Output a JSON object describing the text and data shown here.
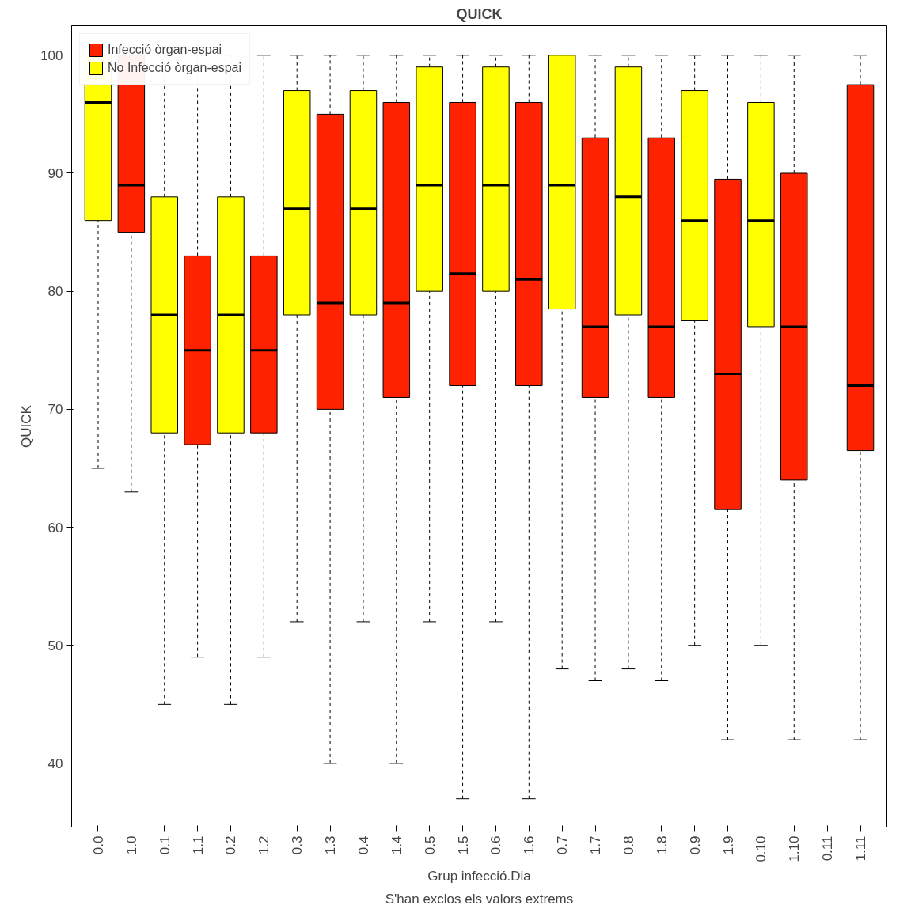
{
  "chart_data": {
    "type": "box",
    "title": "QUICK",
    "xlabel": "Grup infecció.Dia",
    "ylabel": "QUICK",
    "annotations": [
      "S'han exclos els valors extrems"
    ],
    "categories": [
      "0.0",
      "1.0",
      "0.1",
      "1.1",
      "0.2",
      "1.2",
      "0.3",
      "1.3",
      "0.4",
      "1.4",
      "0.5",
      "1.5",
      "0.6",
      "1.6",
      "0.7",
      "1.7",
      "0.8",
      "1.8",
      "0.9",
      "1.9",
      "0.10",
      "1.10",
      "0.11",
      "1.11"
    ],
    "ylim": [
      34.6,
      102.5
    ],
    "yticks": [
      40,
      50,
      60,
      70,
      80,
      90,
      100
    ],
    "grid": false,
    "legend": "top left",
    "series": [
      {
        "name": "Infecció òrgan-espai",
        "color": "#ff2200",
        "boxes": [
          null,
          {
            "low": 63,
            "q1": 85,
            "median": 89,
            "q3": 100,
            "high": 100
          },
          null,
          {
            "low": 49,
            "q1": 67,
            "median": 75,
            "q3": 83,
            "high": 100
          },
          null,
          {
            "low": 49,
            "q1": 68,
            "median": 75,
            "q3": 83,
            "high": 100
          },
          null,
          {
            "low": 40,
            "q1": 70,
            "median": 79,
            "q3": 95,
            "high": 100
          },
          null,
          {
            "low": 40,
            "q1": 71,
            "median": 79,
            "q3": 96,
            "high": 100
          },
          null,
          {
            "low": 37,
            "q1": 72,
            "median": 81.5,
            "q3": 96,
            "high": 100
          },
          null,
          {
            "low": 37,
            "q1": 72,
            "median": 81,
            "q3": 96,
            "high": 100
          },
          null,
          {
            "low": 47,
            "q1": 71,
            "median": 77,
            "q3": 93,
            "high": 100
          },
          null,
          {
            "low": 47,
            "q1": 71,
            "median": 77,
            "q3": 93,
            "high": 100
          },
          null,
          {
            "low": 42,
            "q1": 61.5,
            "median": 73,
            "q3": 89.5,
            "high": 100
          },
          null,
          {
            "low": 42,
            "q1": 64,
            "median": 77,
            "q3": 90,
            "high": 100
          },
          null,
          {
            "low": 42,
            "q1": 66.5,
            "median": 72,
            "q3": 97.5,
            "high": 100
          }
        ]
      },
      {
        "name": "No Infecció òrgan-espai",
        "color": "#ffff00",
        "boxes": [
          {
            "low": 65,
            "q1": 86,
            "median": 96,
            "q3": 100,
            "high": 100
          },
          null,
          {
            "low": 45,
            "q1": 68,
            "median": 78,
            "q3": 88,
            "high": 100
          },
          null,
          {
            "low": 45,
            "q1": 68,
            "median": 78,
            "q3": 88,
            "high": 100
          },
          null,
          {
            "low": 52,
            "q1": 78,
            "median": 87,
            "q3": 97,
            "high": 100
          },
          null,
          {
            "low": 52,
            "q1": 78,
            "median": 87,
            "q3": 97,
            "high": 100
          },
          null,
          {
            "low": 52,
            "q1": 80,
            "median": 89,
            "q3": 99,
            "high": 100
          },
          null,
          {
            "low": 52,
            "q1": 80,
            "median": 89,
            "q3": 99,
            "high": 100
          },
          null,
          {
            "low": 48,
            "q1": 78.5,
            "median": 89,
            "q3": 100,
            "high": 100
          },
          null,
          {
            "low": 48,
            "q1": 78,
            "median": 88,
            "q3": 99,
            "high": 100
          },
          null,
          {
            "low": 50,
            "q1": 77.5,
            "median": 86,
            "q3": 97,
            "high": 100
          },
          null,
          {
            "low": 50,
            "q1": 77,
            "median": 86,
            "q3": 96,
            "high": 100
          },
          null,
          null,
          null
        ]
      }
    ]
  }
}
